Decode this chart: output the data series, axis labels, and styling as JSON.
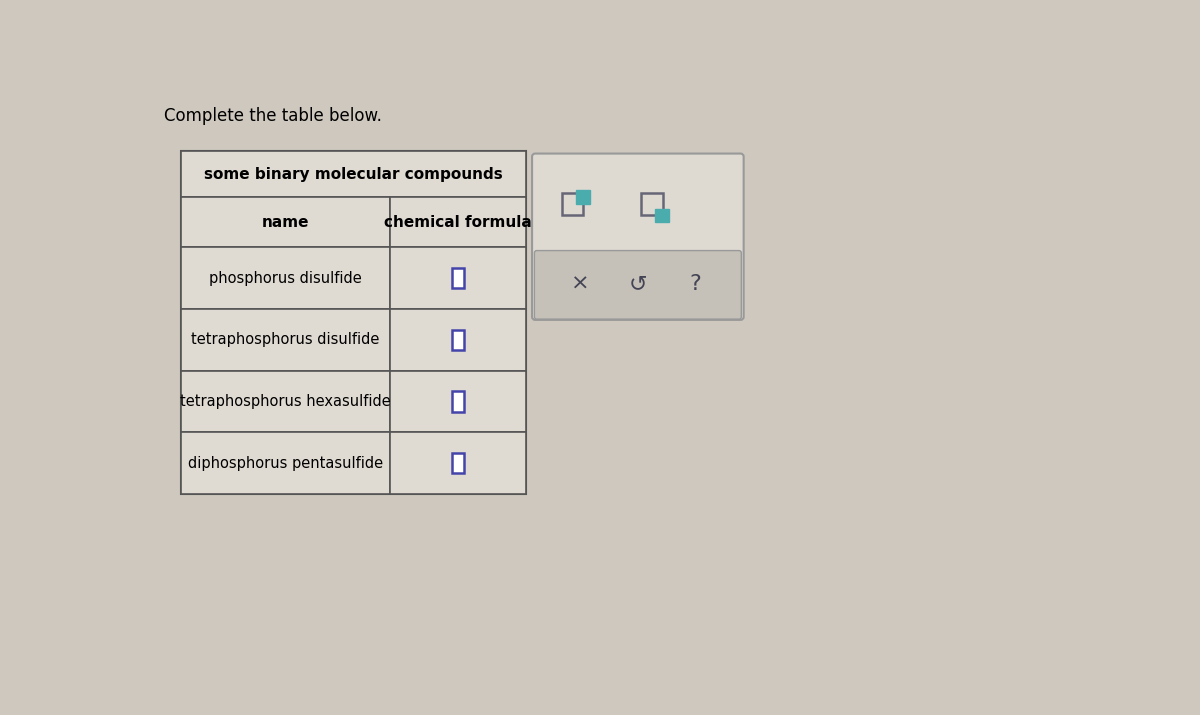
{
  "title_text": "Complete the table below.",
  "table_title": "some binary molecular compounds",
  "col1_header": "name",
  "col2_header": "chemical formula",
  "rows": [
    "phosphorus disulfide",
    "tetraphosphorus disulfide",
    "tetraphosphorus hexasulfide",
    "diphosphorus pentasulfide"
  ],
  "bg_color": "#cec8be",
  "table_bg": "#e0dbd2",
  "table_border": "#555555",
  "input_box_color": "#4444aa",
  "title_fontsize": 12,
  "header_fontsize": 11,
  "cell_fontsize": 10.5,
  "panel_bg": "#dedad2",
  "panel_border": "#999999",
  "toolbar_bg": "#c5c1b8",
  "icon_color": "#444455",
  "teal_color": "#4aacac",
  "box_outline_color": "#666677"
}
